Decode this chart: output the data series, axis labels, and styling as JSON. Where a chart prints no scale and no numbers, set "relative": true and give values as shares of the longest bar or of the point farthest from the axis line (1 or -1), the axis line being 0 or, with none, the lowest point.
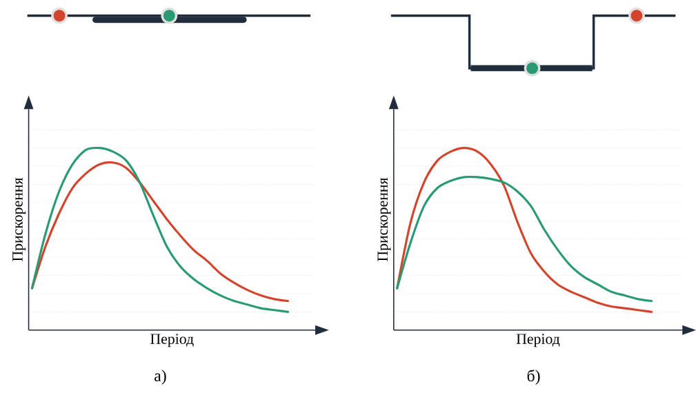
{
  "chart_data": [
    {
      "type": "line",
      "relative": true,
      "xlabel": "Період",
      "ylabel": "Прискорення",
      "grid": "y",
      "annotations": [
        "а)"
      ],
      "categories": [
        null,
        null,
        null,
        null,
        null,
        null,
        null,
        null,
        null,
        null,
        null,
        null,
        null,
        null,
        null,
        null,
        null,
        null,
        null,
        null
      ],
      "series": [
        {
          "color": "#d2452c",
          "values": [
            0.23,
            0.46,
            0.64,
            0.78,
            0.86,
            0.91,
            0.92,
            0.89,
            0.81,
            0.71,
            0.61,
            0.52,
            0.44,
            0.38,
            0.31,
            0.26,
            0.22,
            0.19,
            0.17,
            0.16
          ]
        },
        {
          "color": "#2a9a73",
          "values": [
            0.23,
            0.53,
            0.76,
            0.91,
            0.99,
            1.0,
            0.98,
            0.93,
            0.81,
            0.63,
            0.46,
            0.35,
            0.28,
            0.23,
            0.19,
            0.16,
            0.14,
            0.12,
            0.11,
            0.1
          ]
        }
      ]
    },
    {
      "type": "line",
      "relative": true,
      "xlabel": "Період",
      "ylabel": "Прискорення",
      "grid": "y",
      "annotations": [
        "б)"
      ],
      "categories": [
        null,
        null,
        null,
        null,
        null,
        null,
        null,
        null,
        null,
        null,
        null,
        null,
        null,
        null,
        null,
        null,
        null,
        null,
        null,
        null
      ],
      "series": [
        {
          "color": "#d2452c",
          "values": [
            0.23,
            0.59,
            0.81,
            0.93,
            0.98,
            1.0,
            0.98,
            0.91,
            0.79,
            0.59,
            0.42,
            0.32,
            0.25,
            0.21,
            0.18,
            0.15,
            0.13,
            0.12,
            0.11,
            0.1
          ]
        },
        {
          "color": "#2a9a73",
          "values": [
            0.23,
            0.48,
            0.68,
            0.78,
            0.82,
            0.84,
            0.84,
            0.83,
            0.81,
            0.76,
            0.68,
            0.55,
            0.44,
            0.35,
            0.29,
            0.25,
            0.21,
            0.19,
            0.17,
            0.16
          ]
        }
      ]
    }
  ]
}
